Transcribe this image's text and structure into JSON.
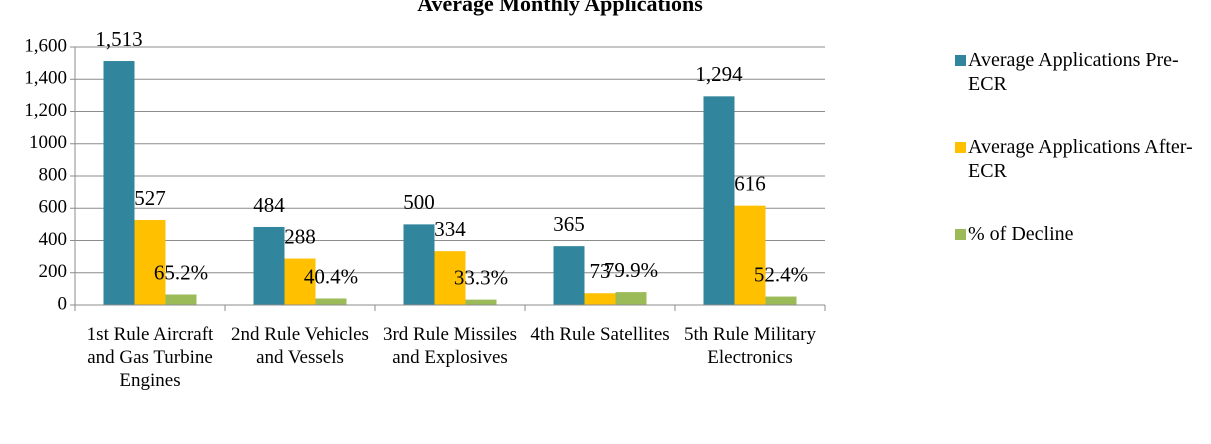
{
  "chart_data": {
    "type": "bar",
    "title": "Average Monthly Applications",
    "categories": [
      "1st Rule Aircraft and Gas Turbine Engines",
      "2nd Rule Vehicles and Vessels",
      "3rd Rule Missiles and Explosives",
      "4th Rule Satellites",
      "5th Rule Military Electronics"
    ],
    "series": [
      {
        "name": "Average Applications Pre-ECR",
        "color": "#31859c",
        "values": [
          1513,
          484,
          500,
          365,
          1294
        ],
        "value_labels": [
          "1,513",
          "484",
          "500",
          "365",
          "1,294"
        ]
      },
      {
        "name": "Average Applications After-ECR",
        "color": "#ffc000",
        "values": [
          527,
          288,
          334,
          73,
          616
        ]
      },
      {
        "name": "% of Decline",
        "color": "#9bbb59",
        "values": [
          65.2,
          40.4,
          33.3,
          79.9,
          52.4
        ],
        "value_labels": [
          "65.2%",
          "40.4%",
          "33.3%",
          "79.9%",
          "52.4%"
        ]
      }
    ],
    "ylim": [
      0,
      1600
    ],
    "yticks": [
      0,
      200,
      400,
      600,
      800,
      1000,
      {
        "value": 1200,
        "label": "1,200"
      },
      {
        "value": 1400,
        "label": "1,400"
      },
      {
        "value": 1600,
        "label": "1,600"
      }
    ],
    "grid": true,
    "legend": "right"
  }
}
